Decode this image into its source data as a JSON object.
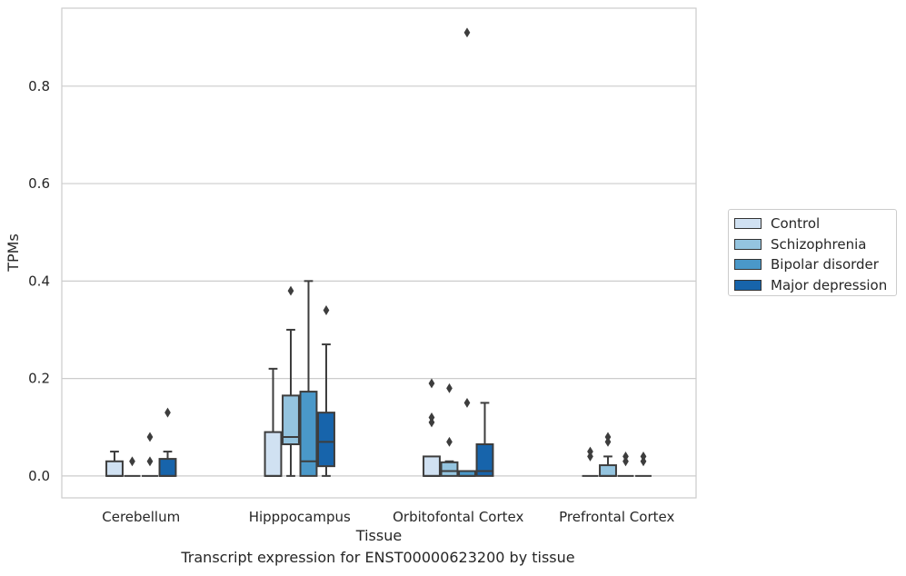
{
  "caption": "Transcript expression for ENST00000623200 by tissue",
  "chart_data": {
    "type": "box",
    "xlabel": "Tissue",
    "ylabel": "TPMs",
    "ylim": [
      -0.045,
      0.96
    ],
    "yticks": [
      0.0,
      0.2,
      0.4,
      0.6,
      0.8
    ],
    "ytick_labels": [
      "0.0",
      "0.2",
      "0.4",
      "0.6",
      "0.8"
    ],
    "grid": true,
    "legend_position": "right",
    "categories": [
      "Cerebellum",
      "Hipppocampus",
      "Orbitofontal Cortex",
      "Prefrontal Cortex"
    ],
    "series": [
      {
        "name": "Control",
        "color": "#d0e1f2"
      },
      {
        "name": "Schizophrenia",
        "color": "#94c4df"
      },
      {
        "name": "Bipolar disorder",
        "color": "#4a98c9"
      },
      {
        "name": "Major depression",
        "color": "#1764ab"
      }
    ],
    "boxes": [
      {
        "category": "Cerebellum",
        "series": "Control",
        "q1": 0.0,
        "median": 0.0,
        "q3": 0.03,
        "whislo": 0.0,
        "whishi": 0.05,
        "fliers": []
      },
      {
        "category": "Cerebellum",
        "series": "Schizophrenia",
        "q1": 0.0,
        "median": 0.0,
        "q3": 0.0,
        "whislo": 0.0,
        "whishi": 0.0,
        "fliers": [
          0.03
        ]
      },
      {
        "category": "Cerebellum",
        "series": "Bipolar disorder",
        "q1": 0.0,
        "median": 0.0,
        "q3": 0.0,
        "whislo": 0.0,
        "whishi": 0.0,
        "fliers": [
          0.03,
          0.08
        ]
      },
      {
        "category": "Cerebellum",
        "series": "Major depression",
        "q1": 0.0,
        "median": 0.0,
        "q3": 0.035,
        "whislo": 0.0,
        "whishi": 0.05,
        "fliers": [
          0.13
        ]
      },
      {
        "category": "Hipppocampus",
        "series": "Control",
        "q1": 0.0,
        "median": 0.0,
        "q3": 0.09,
        "whislo": 0.0,
        "whishi": 0.22,
        "fliers": []
      },
      {
        "category": "Hipppocampus",
        "series": "Schizophrenia",
        "q1": 0.065,
        "median": 0.08,
        "q3": 0.165,
        "whislo": 0.0,
        "whishi": 0.3,
        "fliers": [
          0.38
        ]
      },
      {
        "category": "Hipppocampus",
        "series": "Bipolar disorder",
        "q1": 0.0,
        "median": 0.03,
        "q3": 0.173,
        "whislo": 0.0,
        "whishi": 0.4,
        "fliers": []
      },
      {
        "category": "Hipppocampus",
        "series": "Major depression",
        "q1": 0.02,
        "median": 0.07,
        "q3": 0.13,
        "whislo": 0.0,
        "whishi": 0.27,
        "fliers": [
          0.34
        ]
      },
      {
        "category": "Orbitofontal Cortex",
        "series": "Control",
        "q1": 0.0,
        "median": 0.0,
        "q3": 0.04,
        "whislo": 0.0,
        "whishi": 0.04,
        "fliers": [
          0.11,
          0.12,
          0.19
        ]
      },
      {
        "category": "Orbitofontal Cortex",
        "series": "Schizophrenia",
        "q1": 0.0,
        "median": 0.01,
        "q3": 0.028,
        "whislo": 0.0,
        "whishi": 0.03,
        "fliers": [
          0.07,
          0.18
        ]
      },
      {
        "category": "Orbitofontal Cortex",
        "series": "Bipolar disorder",
        "q1": 0.0,
        "median": 0.0,
        "q3": 0.01,
        "whislo": 0.0,
        "whishi": 0.01,
        "fliers": [
          0.15,
          0.91
        ]
      },
      {
        "category": "Orbitofontal Cortex",
        "series": "Major depression",
        "q1": 0.0,
        "median": 0.01,
        "q3": 0.065,
        "whislo": 0.0,
        "whishi": 0.15,
        "fliers": []
      },
      {
        "category": "Prefrontal Cortex",
        "series": "Control",
        "q1": 0.0,
        "median": 0.0,
        "q3": 0.0,
        "whislo": 0.0,
        "whishi": 0.0,
        "fliers": [
          0.04,
          0.05
        ]
      },
      {
        "category": "Prefrontal Cortex",
        "series": "Schizophrenia",
        "q1": 0.0,
        "median": 0.0,
        "q3": 0.022,
        "whislo": 0.0,
        "whishi": 0.04,
        "fliers": [
          0.07,
          0.08
        ]
      },
      {
        "category": "Prefrontal Cortex",
        "series": "Bipolar disorder",
        "q1": 0.0,
        "median": 0.0,
        "q3": 0.0,
        "whislo": 0.0,
        "whishi": 0.0,
        "fliers": [
          0.03,
          0.04
        ]
      },
      {
        "category": "Prefrontal Cortex",
        "series": "Major depression",
        "q1": 0.0,
        "median": 0.0,
        "q3": 0.0,
        "whislo": 0.0,
        "whishi": 0.0,
        "fliers": [
          0.03,
          0.04
        ]
      }
    ]
  }
}
